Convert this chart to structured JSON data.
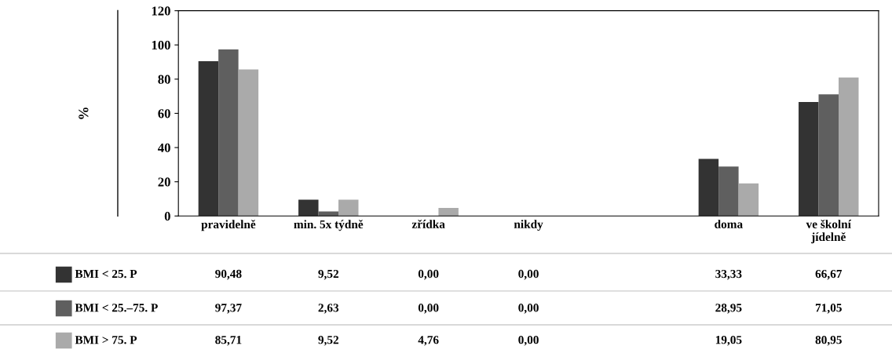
{
  "chart_data": {
    "type": "bar",
    "ylabel": "%",
    "categories": [
      "pravidelně",
      "min. 5x týdně",
      "zřídka",
      "nikdy",
      null,
      "doma",
      "ve školní\njídelně"
    ],
    "series": [
      {
        "name": "BMI < 25. P",
        "color": "#333333",
        "values": [
          90.48,
          9.52,
          0.0,
          0.0,
          null,
          33.33,
          66.67
        ],
        "value_labels": [
          "90,48",
          "9,52",
          "0,00",
          "0,00",
          null,
          "33,33",
          "66,67"
        ]
      },
      {
        "name": "BMI < 25.–75. P",
        "color": "#5f5f5f",
        "values": [
          97.37,
          2.63,
          0.0,
          0.0,
          null,
          28.95,
          71.05
        ],
        "value_labels": [
          "97,37",
          "2,63",
          "0,00",
          "0,00",
          null,
          "28,95",
          "71,05"
        ]
      },
      {
        "name": "BMI > 75. P",
        "color": "#aaaaaa",
        "values": [
          85.71,
          9.52,
          4.76,
          0.0,
          null,
          19.05,
          80.95
        ],
        "value_labels": [
          "85,71",
          "9,52",
          "4,76",
          "0,00",
          null,
          "19,05",
          "80,95"
        ]
      }
    ],
    "ylim": [
      0,
      120
    ],
    "yticks": [
      0,
      20,
      40,
      60,
      80,
      100,
      120
    ],
    "grid": false,
    "legend": "bottom"
  }
}
